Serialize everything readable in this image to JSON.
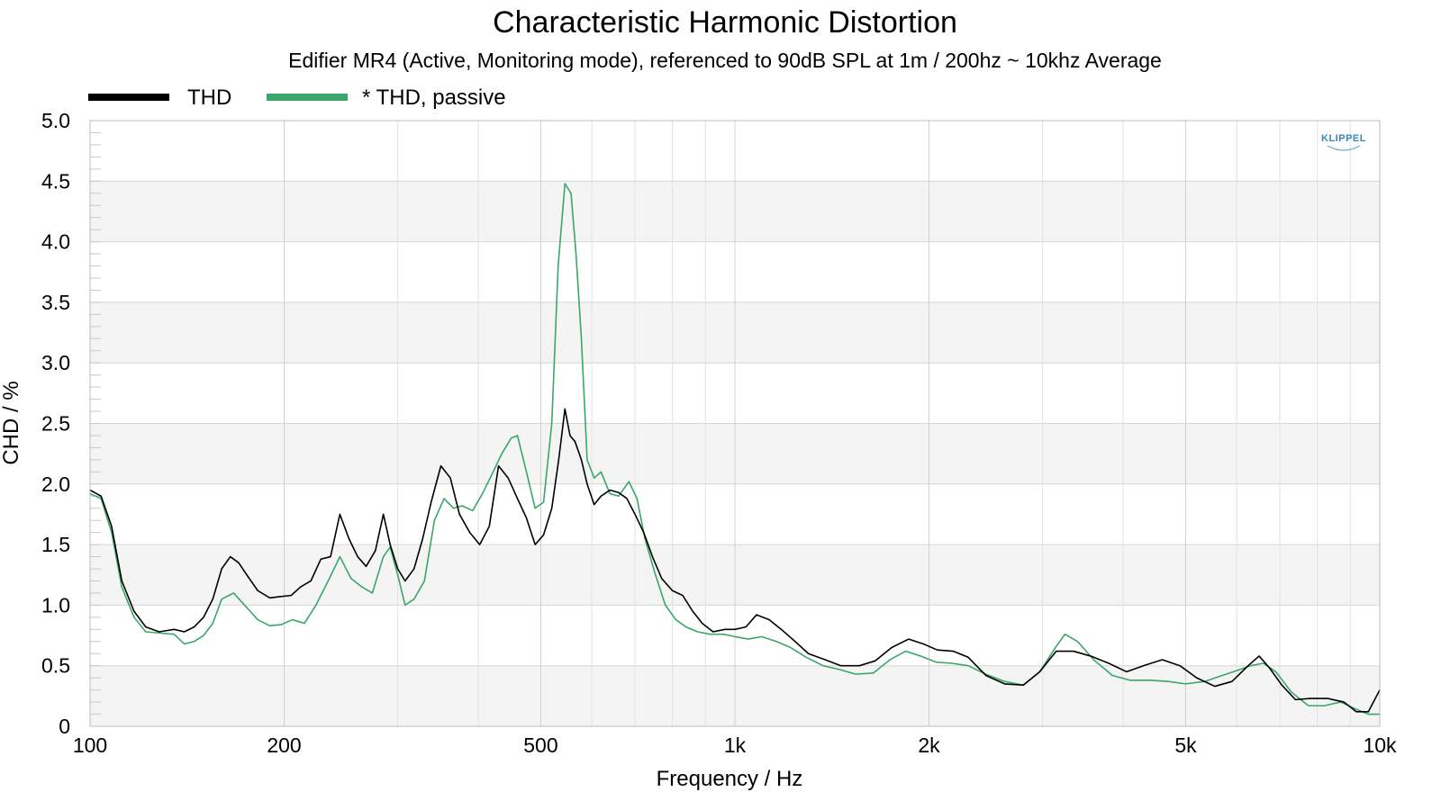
{
  "chart_data": {
    "type": "line",
    "title": "Characteristic Harmonic Distortion",
    "subtitle": "Edifier MR4 (Active, Monitoring mode), referenced to 90dB SPL at 1m / 200hz ~ 10khz Average",
    "xlabel": "Frequency / Hz",
    "ylabel": "CHD / %",
    "xscale": "log",
    "xlim": [
      100,
      10000
    ],
    "ylim": [
      0,
      5
    ],
    "x_ticks": [
      {
        "value": 100,
        "label": "100"
      },
      {
        "value": 200,
        "label": "200"
      },
      {
        "value": 500,
        "label": "500"
      },
      {
        "value": 1000,
        "label": "1k"
      },
      {
        "value": 2000,
        "label": "2k"
      },
      {
        "value": 5000,
        "label": "5k"
      },
      {
        "value": 10000,
        "label": "10k"
      }
    ],
    "y_ticks": [
      {
        "value": 0,
        "label": "0"
      },
      {
        "value": 0.5,
        "label": "0.5"
      },
      {
        "value": 1.0,
        "label": "1.0"
      },
      {
        "value": 1.5,
        "label": "1.5"
      },
      {
        "value": 2.0,
        "label": "2.0"
      },
      {
        "value": 2.5,
        "label": "2.5"
      },
      {
        "value": 3.0,
        "label": "3.0"
      },
      {
        "value": 3.5,
        "label": "3.5"
      },
      {
        "value": 4.0,
        "label": "4.0"
      },
      {
        "value": 4.5,
        "label": "4.5"
      },
      {
        "value": 5.0,
        "label": "5.0"
      }
    ],
    "grid": true,
    "legend_position": "top-left",
    "logo_text": "KLIPPEL",
    "series": [
      {
        "name": "THD",
        "color": "#000000",
        "points": [
          [
            100,
            1.95
          ],
          [
            104,
            1.9
          ],
          [
            108,
            1.65
          ],
          [
            112,
            1.2
          ],
          [
            117,
            0.95
          ],
          [
            122,
            0.82
          ],
          [
            128,
            0.78
          ],
          [
            135,
            0.8
          ],
          [
            140,
            0.78
          ],
          [
            145,
            0.82
          ],
          [
            150,
            0.9
          ],
          [
            155,
            1.05
          ],
          [
            160,
            1.3
          ],
          [
            165,
            1.4
          ],
          [
            170,
            1.35
          ],
          [
            175,
            1.25
          ],
          [
            182,
            1.12
          ],
          [
            190,
            1.06
          ],
          [
            197,
            1.07
          ],
          [
            205,
            1.08
          ],
          [
            212,
            1.15
          ],
          [
            220,
            1.2
          ],
          [
            228,
            1.38
          ],
          [
            236,
            1.4
          ],
          [
            244,
            1.75
          ],
          [
            252,
            1.55
          ],
          [
            260,
            1.4
          ],
          [
            268,
            1.32
          ],
          [
            277,
            1.45
          ],
          [
            285,
            1.75
          ],
          [
            292,
            1.5
          ],
          [
            300,
            1.3
          ],
          [
            308,
            1.2
          ],
          [
            318,
            1.3
          ],
          [
            328,
            1.55
          ],
          [
            338,
            1.85
          ],
          [
            350,
            2.15
          ],
          [
            362,
            2.05
          ],
          [
            374,
            1.75
          ],
          [
            388,
            1.6
          ],
          [
            402,
            1.5
          ],
          [
            416,
            1.65
          ],
          [
            430,
            2.15
          ],
          [
            445,
            2.05
          ],
          [
            460,
            1.88
          ],
          [
            475,
            1.72
          ],
          [
            490,
            1.5
          ],
          [
            505,
            1.58
          ],
          [
            520,
            1.8
          ],
          [
            533,
            2.2
          ],
          [
            545,
            2.62
          ],
          [
            555,
            2.4
          ],
          [
            565,
            2.35
          ],
          [
            578,
            2.2
          ],
          [
            590,
            2.0
          ],
          [
            605,
            1.83
          ],
          [
            620,
            1.9
          ],
          [
            640,
            1.95
          ],
          [
            660,
            1.93
          ],
          [
            680,
            1.88
          ],
          [
            700,
            1.75
          ],
          [
            722,
            1.6
          ],
          [
            745,
            1.4
          ],
          [
            770,
            1.22
          ],
          [
            800,
            1.12
          ],
          [
            830,
            1.08
          ],
          [
            860,
            0.95
          ],
          [
            890,
            0.85
          ],
          [
            925,
            0.78
          ],
          [
            965,
            0.8
          ],
          [
            1000,
            0.8
          ],
          [
            1040,
            0.82
          ],
          [
            1080,
            0.92
          ],
          [
            1130,
            0.88
          ],
          [
            1180,
            0.8
          ],
          [
            1240,
            0.7
          ],
          [
            1300,
            0.6
          ],
          [
            1380,
            0.55
          ],
          [
            1460,
            0.5
          ],
          [
            1560,
            0.5
          ],
          [
            1650,
            0.54
          ],
          [
            1750,
            0.65
          ],
          [
            1860,
            0.72
          ],
          [
            1960,
            0.68
          ],
          [
            2060,
            0.63
          ],
          [
            2180,
            0.62
          ],
          [
            2300,
            0.57
          ],
          [
            2450,
            0.42
          ],
          [
            2620,
            0.35
          ],
          [
            2800,
            0.34
          ],
          [
            2970,
            0.45
          ],
          [
            3150,
            0.62
          ],
          [
            3350,
            0.62
          ],
          [
            3560,
            0.58
          ],
          [
            3800,
            0.52
          ],
          [
            4050,
            0.45
          ],
          [
            4300,
            0.5
          ],
          [
            4600,
            0.55
          ],
          [
            4900,
            0.5
          ],
          [
            5200,
            0.4
          ],
          [
            5550,
            0.33
          ],
          [
            5900,
            0.37
          ],
          [
            6250,
            0.5
          ],
          [
            6500,
            0.58
          ],
          [
            6750,
            0.48
          ],
          [
            7050,
            0.34
          ],
          [
            7400,
            0.22
          ],
          [
            7800,
            0.23
          ],
          [
            8300,
            0.23
          ],
          [
            8800,
            0.2
          ],
          [
            9200,
            0.12
          ],
          [
            9600,
            0.12
          ],
          [
            10000,
            0.3
          ]
        ]
      },
      {
        "name": "* THD, passive",
        "color": "#3aa66a",
        "points": [
          [
            100,
            1.92
          ],
          [
            104,
            1.88
          ],
          [
            108,
            1.6
          ],
          [
            112,
            1.15
          ],
          [
            117,
            0.9
          ],
          [
            122,
            0.78
          ],
          [
            128,
            0.77
          ],
          [
            135,
            0.76
          ],
          [
            140,
            0.68
          ],
          [
            145,
            0.7
          ],
          [
            150,
            0.75
          ],
          [
            155,
            0.85
          ],
          [
            160,
            1.05
          ],
          [
            167,
            1.1
          ],
          [
            175,
            0.98
          ],
          [
            182,
            0.88
          ],
          [
            190,
            0.83
          ],
          [
            198,
            0.84
          ],
          [
            206,
            0.88
          ],
          [
            215,
            0.85
          ],
          [
            224,
            1.0
          ],
          [
            234,
            1.2
          ],
          [
            244,
            1.4
          ],
          [
            254,
            1.22
          ],
          [
            264,
            1.15
          ],
          [
            274,
            1.1
          ],
          [
            285,
            1.4
          ],
          [
            292,
            1.48
          ],
          [
            300,
            1.25
          ],
          [
            308,
            1.0
          ],
          [
            318,
            1.05
          ],
          [
            330,
            1.2
          ],
          [
            342,
            1.7
          ],
          [
            354,
            1.88
          ],
          [
            366,
            1.8
          ],
          [
            378,
            1.82
          ],
          [
            392,
            1.78
          ],
          [
            406,
            1.92
          ],
          [
            420,
            2.08
          ],
          [
            435,
            2.25
          ],
          [
            450,
            2.38
          ],
          [
            460,
            2.4
          ],
          [
            475,
            2.1
          ],
          [
            490,
            1.8
          ],
          [
            505,
            1.85
          ],
          [
            520,
            2.5
          ],
          [
            532,
            3.8
          ],
          [
            545,
            4.48
          ],
          [
            557,
            4.4
          ],
          [
            567,
            3.9
          ],
          [
            578,
            3.2
          ],
          [
            590,
            2.2
          ],
          [
            605,
            2.05
          ],
          [
            620,
            2.1
          ],
          [
            640,
            1.92
          ],
          [
            660,
            1.9
          ],
          [
            685,
            2.02
          ],
          [
            705,
            1.88
          ],
          [
            725,
            1.55
          ],
          [
            750,
            1.28
          ],
          [
            780,
            1.0
          ],
          [
            810,
            0.88
          ],
          [
            840,
            0.82
          ],
          [
            875,
            0.78
          ],
          [
            915,
            0.76
          ],
          [
            960,
            0.76
          ],
          [
            1000,
            0.74
          ],
          [
            1050,
            0.72
          ],
          [
            1100,
            0.74
          ],
          [
            1160,
            0.7
          ],
          [
            1220,
            0.65
          ],
          [
            1290,
            0.57
          ],
          [
            1370,
            0.5
          ],
          [
            1450,
            0.47
          ],
          [
            1540,
            0.43
          ],
          [
            1640,
            0.44
          ],
          [
            1740,
            0.55
          ],
          [
            1840,
            0.62
          ],
          [
            1940,
            0.58
          ],
          [
            2050,
            0.53
          ],
          [
            2170,
            0.52
          ],
          [
            2300,
            0.5
          ],
          [
            2450,
            0.43
          ],
          [
            2620,
            0.37
          ],
          [
            2800,
            0.34
          ],
          [
            2970,
            0.45
          ],
          [
            3150,
            0.66
          ],
          [
            3250,
            0.76
          ],
          [
            3400,
            0.7
          ],
          [
            3600,
            0.55
          ],
          [
            3850,
            0.42
          ],
          [
            4100,
            0.38
          ],
          [
            4400,
            0.38
          ],
          [
            4700,
            0.37
          ],
          [
            5000,
            0.35
          ],
          [
            5350,
            0.37
          ],
          [
            5700,
            0.42
          ],
          [
            6000,
            0.46
          ],
          [
            6300,
            0.5
          ],
          [
            6600,
            0.52
          ],
          [
            6900,
            0.45
          ],
          [
            7300,
            0.28
          ],
          [
            7750,
            0.17
          ],
          [
            8200,
            0.17
          ],
          [
            8700,
            0.2
          ],
          [
            9200,
            0.14
          ],
          [
            9600,
            0.1
          ],
          [
            10000,
            0.1
          ]
        ]
      }
    ]
  }
}
